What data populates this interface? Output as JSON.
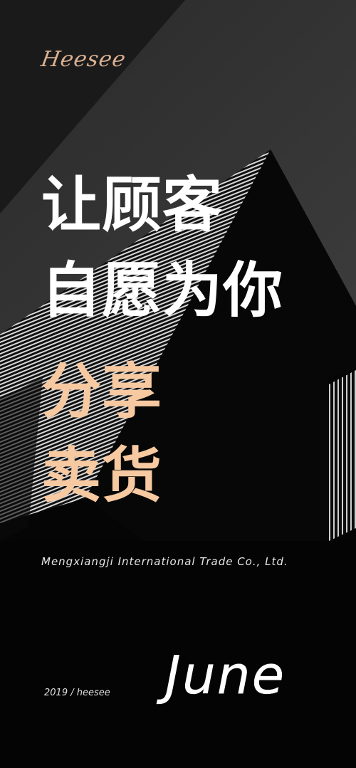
{
  "brand": "Heesee",
  "headline": {
    "line1": "让顾客",
    "line2": "自愿为你",
    "line3": "分享",
    "line4": "卖货"
  },
  "company": "Mengxiangji International Trade Co., Ltd.",
  "footer": {
    "year_brand": "2019 / heesee",
    "month": "June"
  },
  "colors": {
    "background": "#040404",
    "accent": "#f7c9a1",
    "brand": "#d9b091",
    "text": "#ffffff"
  }
}
